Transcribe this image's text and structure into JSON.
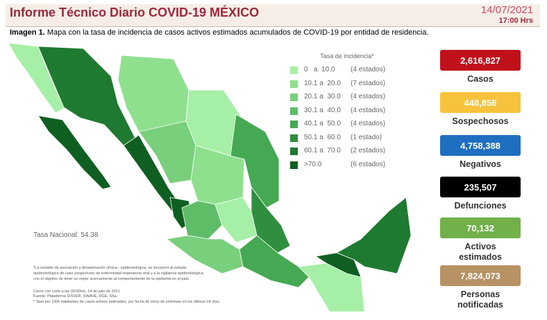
{
  "header": {
    "title": "Informe Técnico Diario COVID-19 MÉXICO",
    "date": "14/07/2021",
    "time": "17:00 Hrs"
  },
  "subtitle": {
    "label": "Imagen 1.",
    "text": "Mapa con la tasa de incidencia de casos activos estimados acumulados de COVID-19 por entidad de residencia."
  },
  "legend": {
    "title": "Tasa de incidencia*",
    "items": [
      {
        "label": "0   a  10.0",
        "count": "(4 estados)",
        "color": "#a6efa6"
      },
      {
        "label": "10.1 a  20.0",
        "count": "(7 estados)",
        "color": "#8ee08e"
      },
      {
        "label": "20.1 a  30.0",
        "count": "(4 estados)",
        "color": "#78cf7c"
      },
      {
        "label": "30.1 a  40.0",
        "count": "(4 estados)",
        "color": "#5fbd68"
      },
      {
        "label": "40.1 a  50.0",
        "count": "(4 estados)",
        "color": "#45a852"
      },
      {
        "label": "50.1 a  60.0",
        "count": "(1 estado)",
        "color": "#2f8f3e"
      },
      {
        "label": "60.1 a  70.0",
        "count": "(2 estados)",
        "color": "#1f7a31"
      },
      {
        "label": ">70.0",
        "count": "(6 estados)",
        "color": "#0f5f22"
      }
    ]
  },
  "national": "Tasa Nacional: 54.38",
  "notes": [
    "*La variable de asociación y dictaminación clínica - epidemiológica, se incorporó al estudio",
    "epidemiológico de caso sospechoso de enfermedad respiratoria viral y a la vigilancia epidemiológica,",
    "con el objetivo de tener un mejor acercamiento al comportamiento de la epidemia en el país.",
    "Cierre con corte a las 09:00hrs, 14 de julio de 2021",
    "Fuente: Plataforma SISVER, SINAVE, DGE, SSa.",
    "* Tasa por 100k habitantes de casos activos estimados, por fecha de inicio de síntomas en los últimos 14 días."
  ],
  "stats": [
    {
      "value": "2,616,827",
      "label": "Casos",
      "color": "#c0111b",
      "text_color": "#ffffff"
    },
    {
      "value": "448,858",
      "label": "Sospechosos",
      "color": "#f7c23c",
      "text_color": "#ffffff"
    },
    {
      "value": "4,758,388",
      "label": "Negativos",
      "color": "#1f6fc0",
      "text_color": "#ffffff"
    },
    {
      "value": "235,507",
      "label": "Defunciones",
      "color": "#000000",
      "text_color": "#ffffff"
    },
    {
      "value": "70,132",
      "label": "Activos estimados",
      "color": "#72b04a",
      "text_color": "#ffffff"
    },
    {
      "value": "7,824,073",
      "label": "Personas notificadas",
      "color": "#b89164",
      "text_color": "#ffffff"
    }
  ]
}
